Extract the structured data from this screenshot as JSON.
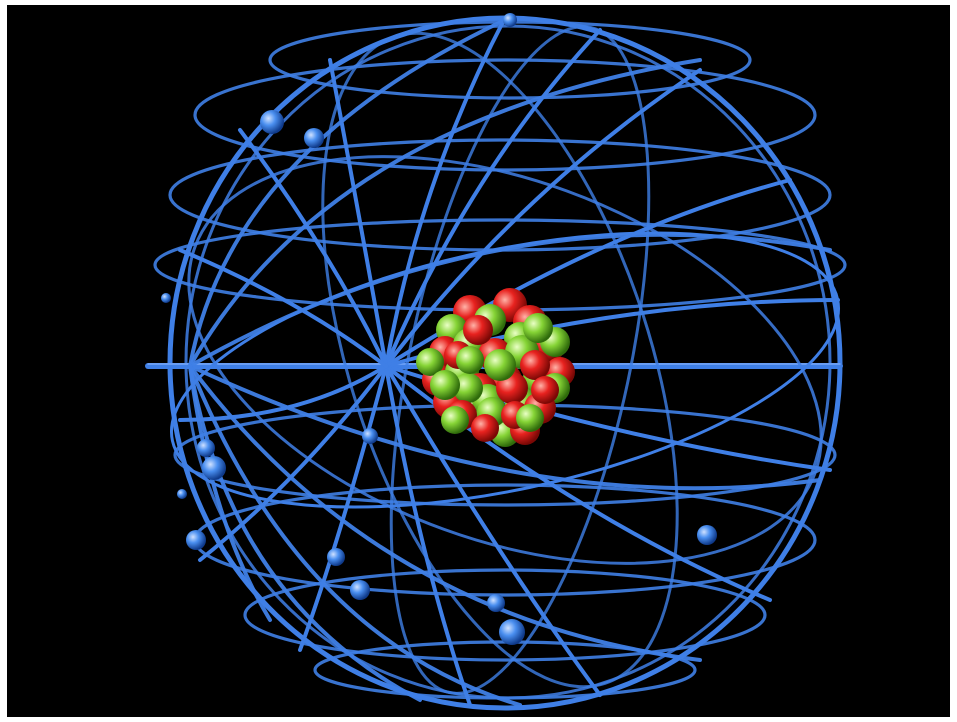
{
  "scene": {
    "subject": "atom-model",
    "colors": {
      "frame": "#ffffff",
      "background": "#000000",
      "orbit": "#3f7fe6",
      "orbit_highlight": "#8fb8ff",
      "electron": "#3f86ee",
      "proton": "#e8221f",
      "neutron": "#7ecf2f"
    },
    "counts": {
      "electrons": 14,
      "nucleons": 44
    }
  }
}
